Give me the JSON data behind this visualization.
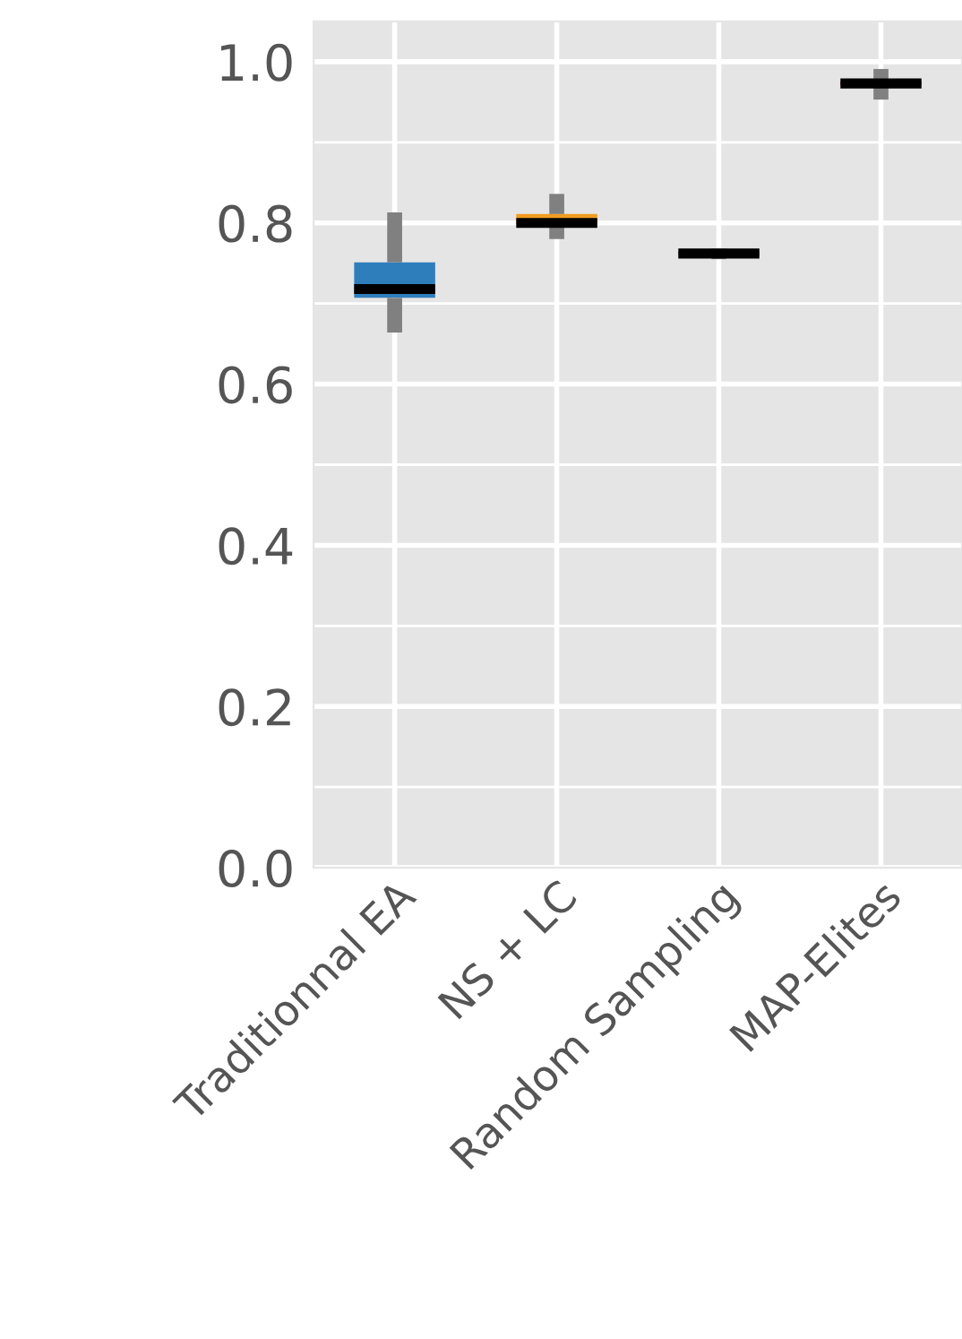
{
  "chart_data": {
    "type": "box",
    "categories": [
      "Traditionnal EA",
      "NS + LC",
      "Random Sampling",
      "MAP-Elites"
    ],
    "boxes": [
      {
        "low": 0.664,
        "q1": 0.707,
        "median": 0.718,
        "q3": 0.751,
        "high": 0.813
      },
      {
        "low": 0.78,
        "q1": 0.798,
        "median": 0.8,
        "q3": 0.811,
        "high": 0.836
      },
      {
        "low": 0.755,
        "q1": 0.76,
        "median": 0.762,
        "q3": 0.764,
        "high": 0.768
      },
      {
        "low": 0.953,
        "q1": 0.971,
        "median": 0.973,
        "q3": 0.975,
        "high": 0.991
      }
    ],
    "colors": [
      "#2f7ebc",
      "#f39c1f",
      "#2ca02c",
      "#d62728"
    ],
    "ylim": [
      0,
      1.05
    ],
    "yticks": [
      {
        "value": 0,
        "label": "0.0"
      },
      0.2,
      0.4,
      0.6,
      0.8,
      {
        "value": 1,
        "label": "1.0"
      }
    ],
    "grid": true
  }
}
